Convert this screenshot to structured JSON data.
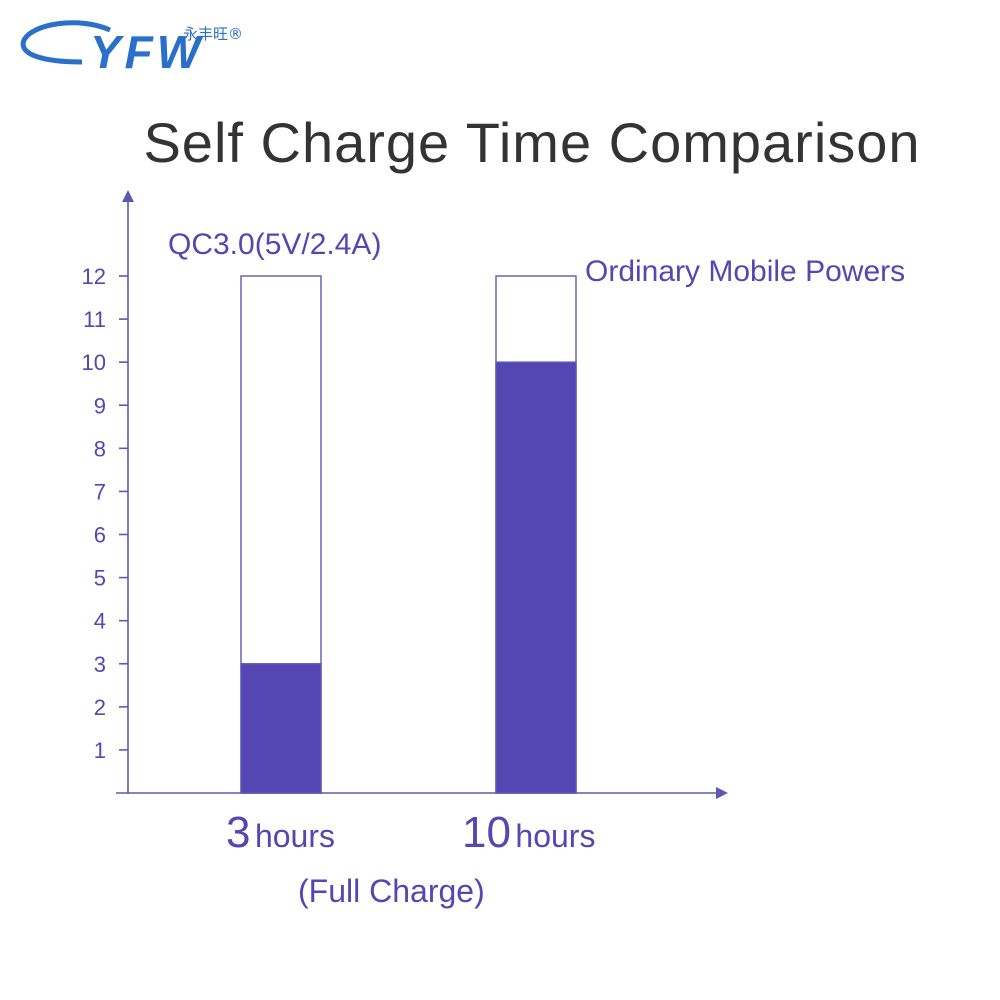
{
  "logo": {
    "text": "YFW",
    "subtext": "永丰旺®"
  },
  "colors": {
    "accent": "#5546b3",
    "axis": "#5a5ab4",
    "title": "#333333",
    "logo": "#2a6fc9"
  },
  "chart_data": {
    "type": "bar",
    "title": "Self Charge Time Comparison",
    "categories": [
      {
        "num": "3",
        "unit": "hours"
      },
      {
        "num": "10",
        "unit": "hours"
      }
    ],
    "category_note": "(Full Charge)",
    "series": [
      {
        "name": "QC3.0(5V/2.4A)",
        "value": 3
      },
      {
        "name": "Ordinary Mobile Powers",
        "value": 10
      }
    ],
    "bar_outline_max": 12,
    "ylim": [
      0,
      12
    ],
    "yticks": [
      1,
      2,
      3,
      4,
      5,
      6,
      7,
      8,
      9,
      10,
      11,
      12
    ],
    "grid": false
  }
}
